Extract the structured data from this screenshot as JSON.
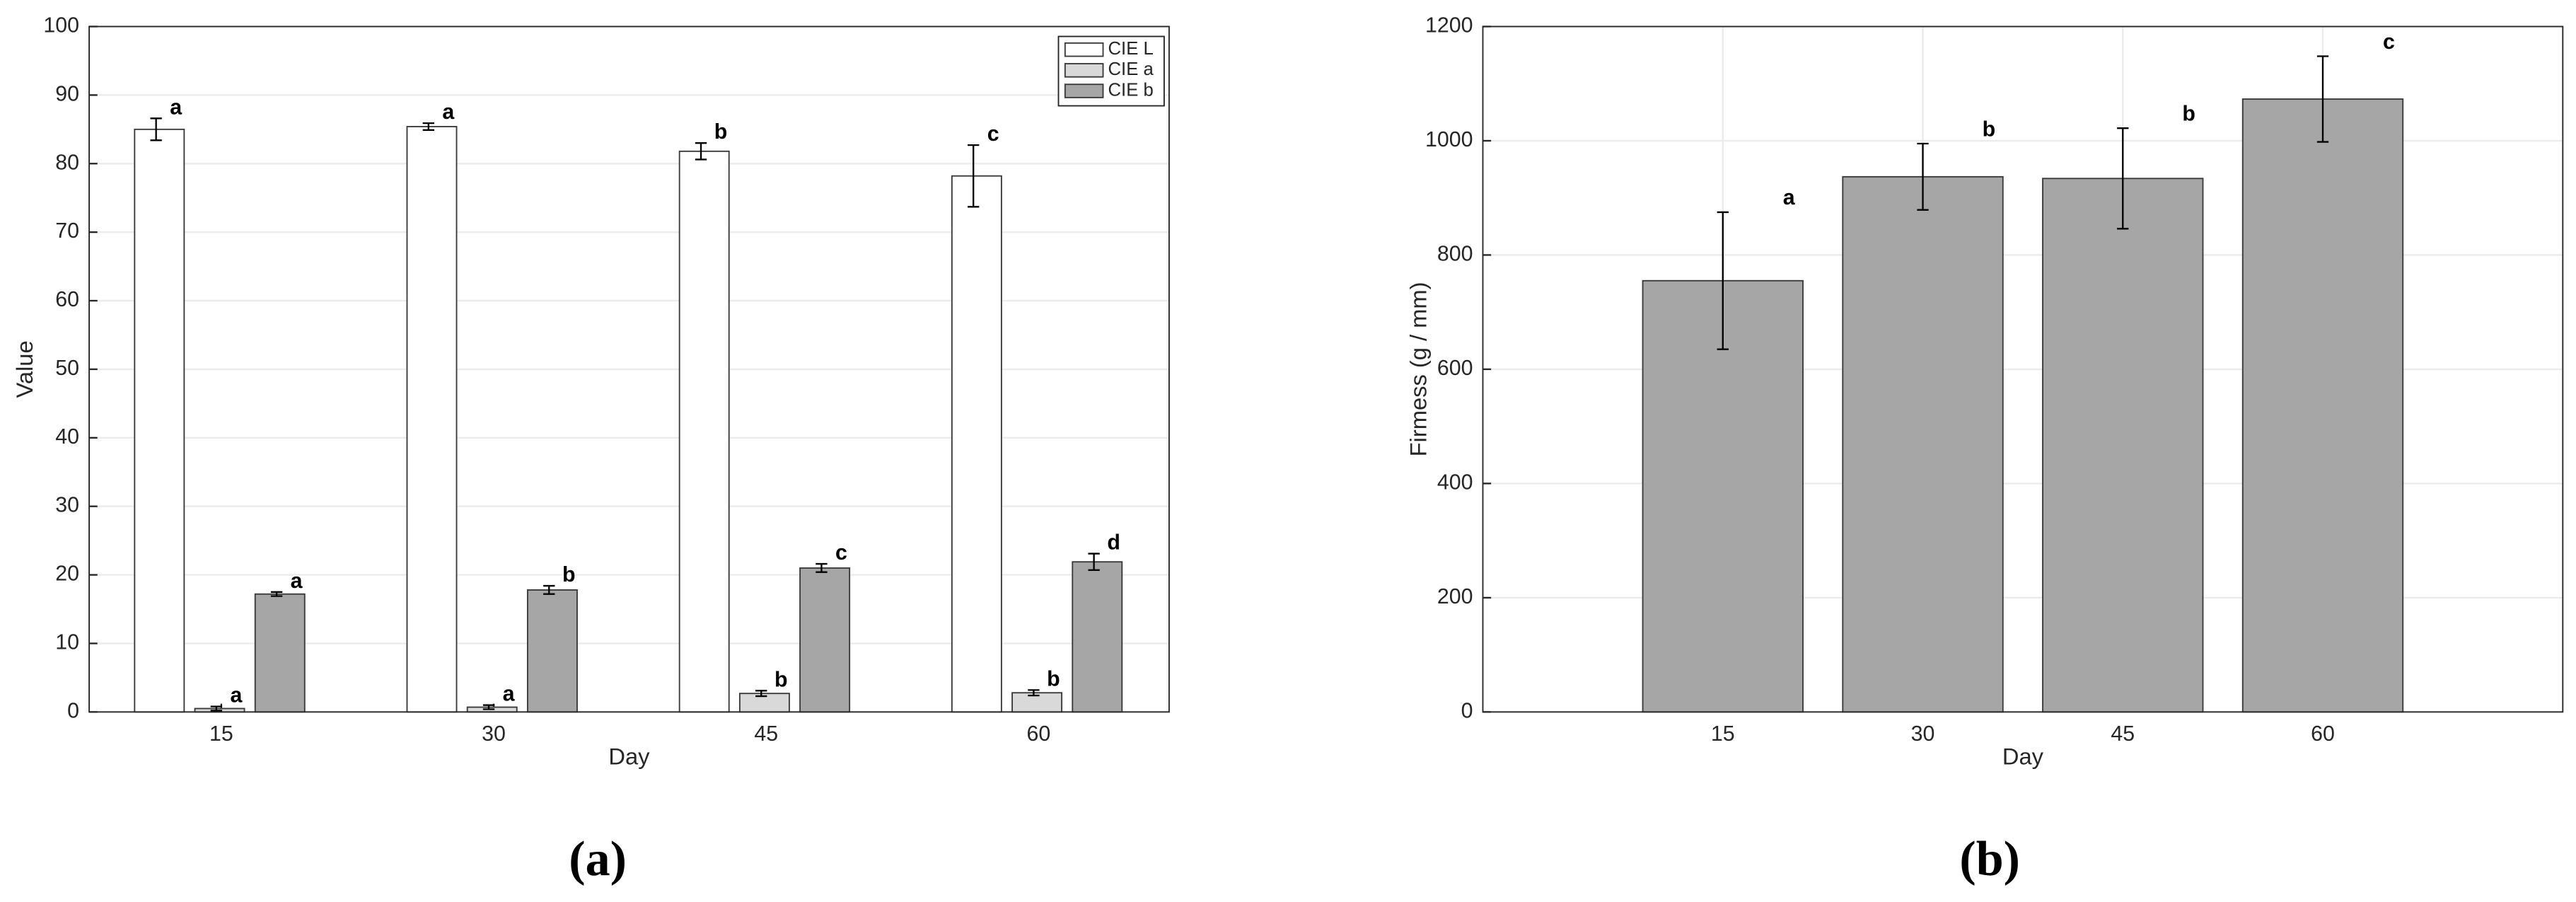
{
  "chart_data": [
    {
      "type": "bar",
      "caption": "(a)",
      "xlabel": "Day",
      "ylabel": "Value",
      "categories": [
        "15",
        "30",
        "45",
        "60"
      ],
      "series": [
        {
          "name": "CIE L",
          "color": "#ffffff",
          "values": [
            85.0,
            85.4,
            81.8,
            78.2
          ],
          "errors": [
            1.6,
            0.5,
            1.2,
            4.5
          ],
          "labels": [
            "a",
            "a",
            "b",
            "c"
          ]
        },
        {
          "name": "CIE a",
          "color": "#d9d9d9",
          "values": [
            0.5,
            0.7,
            2.7,
            2.8
          ],
          "errors": [
            0.3,
            0.3,
            0.4,
            0.4
          ],
          "labels": [
            "a",
            "a",
            "b",
            "b"
          ]
        },
        {
          "name": "CIE b",
          "color": "#a6a6a6",
          "values": [
            17.2,
            17.8,
            21.0,
            21.9
          ],
          "errors": [
            0.3,
            0.6,
            0.6,
            1.2
          ],
          "labels": [
            "a",
            "b",
            "c",
            "d"
          ]
        }
      ],
      "ylim": [
        0,
        100
      ],
      "yticks": [
        0,
        10,
        20,
        30,
        40,
        50,
        60,
        70,
        80,
        90,
        100
      ],
      "grid": true,
      "legend": "upper right"
    },
    {
      "type": "bar",
      "caption": "(b)",
      "xlabel": "Day",
      "ylabel": "Firmess (g / mm)",
      "x": [
        15,
        30,
        45,
        60
      ],
      "values": [
        755,
        937,
        934,
        1073
      ],
      "errors": [
        120,
        58,
        88,
        75
      ],
      "labels": [
        "a",
        "b",
        "b",
        "c"
      ],
      "color": "#a6a6a6",
      "xlim": [
        -3,
        78
      ],
      "xticks": [
        15,
        30,
        45,
        60
      ],
      "ylim": [
        0,
        1200
      ],
      "yticks": [
        0,
        200,
        400,
        600,
        800,
        1000,
        1200
      ],
      "grid": true
    }
  ]
}
